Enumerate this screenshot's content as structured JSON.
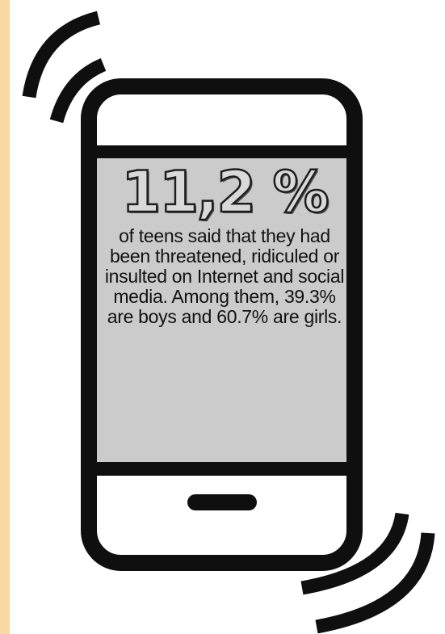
{
  "colors": {
    "accent_strip": "#f7d9a3",
    "screen": "#cbcbcb",
    "outline": "#0f0f0f",
    "background": "#ffffff"
  },
  "icons": [
    "phone-icon",
    "vibration-waves-icon"
  ],
  "infographic": {
    "stat": "11,2 %",
    "description": "of teens said that they had been threatened, ridiculed or insulted on Internet and social media. Among them, 39.3% are boys and 60.7% are girls."
  }
}
